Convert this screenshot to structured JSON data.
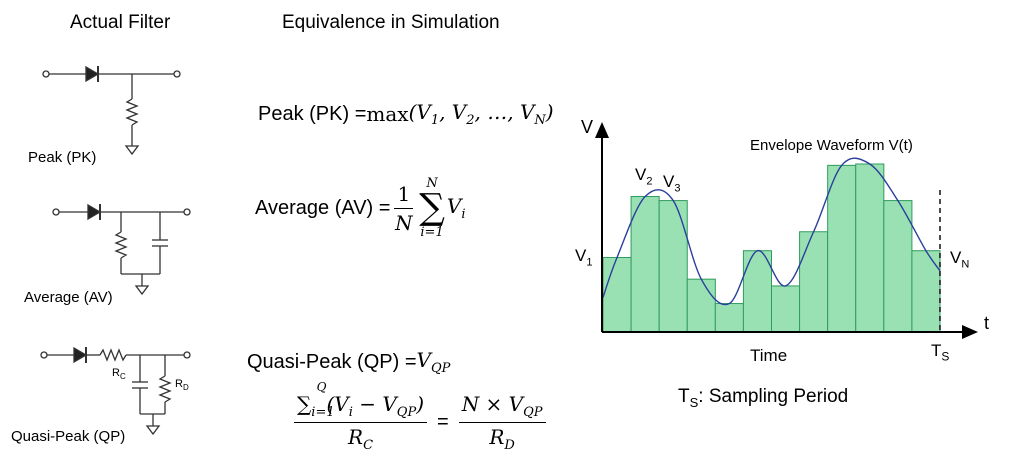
{
  "headers": {
    "left": "Actual Filter",
    "middle": "Equivalence in Simulation"
  },
  "filters": {
    "pk": {
      "label": "Peak (PK)"
    },
    "av": {
      "label": "Average (AV)"
    },
    "qp": {
      "label": "Quasi-Peak (QP)",
      "rc": "R",
      "rc_sub": "C",
      "rd": "R",
      "rd_sub": "D"
    }
  },
  "equations": {
    "pk": {
      "lhs": "Peak (PK) = ",
      "fn": "max",
      "args": "(V",
      "a1": "1",
      "c1": ", V",
      "a2": "2",
      "c2": ", …, V",
      "a3": "N",
      "end": ")"
    },
    "av": {
      "lhs": "Average (AV) = ",
      "num": "1",
      "den": "N",
      "sum_top": "N",
      "sum_bottom": "i=1",
      "term": "V",
      "term_sub": "i"
    },
    "qp1": {
      "lhs": "Quasi-Peak (QP) = ",
      "rhs": "V",
      "rhs_sub": "QP"
    },
    "qp2": {
      "sum_sym": "∑",
      "sum_sub": "i=1",
      "sum_sup": "Q",
      "open": "(V",
      "vi_sub": "i",
      "minus": " − V",
      "vqp_sub": "QP",
      "close": ")",
      "den_l": "R",
      "den_l_sub": "C",
      "eq": "=",
      "num_r": "N × V",
      "num_r_sub": "QP",
      "den_r": "R",
      "den_r_sub": "D"
    }
  },
  "chart": {
    "y_axis_label": "V",
    "x_axis_label": "t",
    "envelope_label": "Envelope Waveform V(t)",
    "time_label": "Time",
    "ts_label": "T",
    "ts_sub": "S",
    "v1": "V",
    "v1_sub": "1",
    "v2": "V",
    "v2_sub": "2",
    "v3": "V",
    "v3_sub": "3",
    "vn": "V",
    "vn_sub": "N",
    "sampling_label": ": Sampling Period",
    "sampling_t": "T",
    "sampling_sub": "S",
    "bar_fill": "#99e0b3",
    "bar_stroke": "#2e9c5c",
    "curve_color": "#2a3f9d"
  },
  "chart_data": {
    "type": "bar",
    "description_series": "sampled envelope",
    "values": [
      0.55,
      1.0,
      0.97,
      0.39,
      0.21,
      0.6,
      0.34,
      0.74,
      1.23,
      1.24,
      0.97,
      0.6
    ],
    "ylim": [
      0,
      1.55
    ],
    "grid": false
  }
}
